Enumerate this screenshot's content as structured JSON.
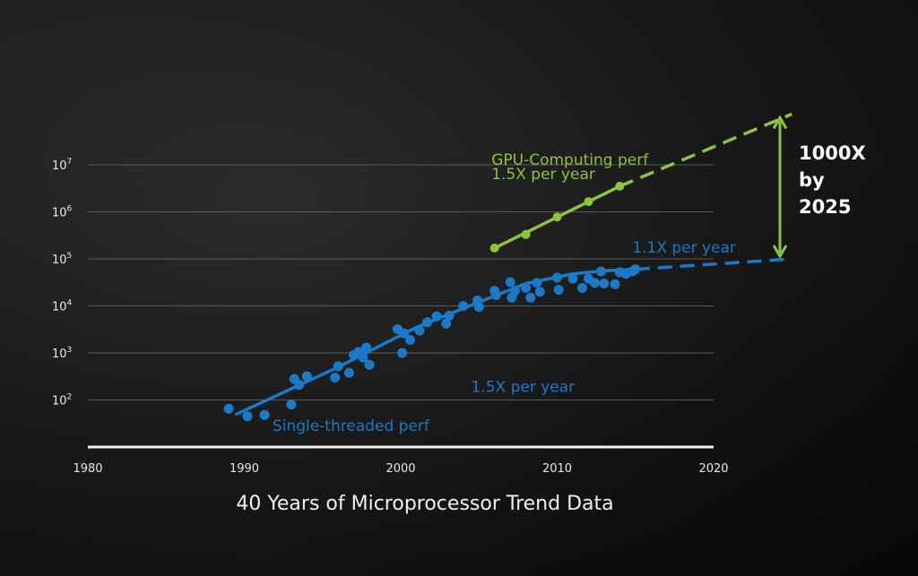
{
  "chart_data": {
    "type": "scatter",
    "y_scale": "log10",
    "xlim": [
      1980,
      2020
    ],
    "ylim": [
      10,
      10000000
    ],
    "x_ticks": [
      "1980",
      "1990",
      "2000",
      "2010",
      "2020"
    ],
    "y_ticks": [
      {
        "value": 100,
        "base": "10",
        "exp": "2"
      },
      {
        "value": 1000,
        "base": "10",
        "exp": "3"
      },
      {
        "value": 10000,
        "base": "10",
        "exp": "4"
      },
      {
        "value": 100000,
        "base": "10",
        "exp": "5"
      },
      {
        "value": 1000000,
        "base": "10",
        "exp": "6"
      },
      {
        "value": 10000000,
        "base": "10",
        "exp": "7"
      }
    ],
    "grid": true,
    "series": [
      {
        "name": "Single-threaded perf",
        "color": "#1a7ac9",
        "points": [
          [
            1989.0,
            65
          ],
          [
            1990.2,
            45
          ],
          [
            1991.3,
            48
          ],
          [
            1993.0,
            80
          ],
          [
            1993.2,
            280
          ],
          [
            1993.5,
            210
          ],
          [
            1994.0,
            320
          ],
          [
            1995.8,
            300
          ],
          [
            1996.0,
            520
          ],
          [
            1996.7,
            380
          ],
          [
            1997.0,
            900
          ],
          [
            1997.3,
            1050
          ],
          [
            1997.6,
            800
          ],
          [
            1997.8,
            1300
          ],
          [
            1998.0,
            560
          ],
          [
            1999.8,
            3200
          ],
          [
            2000.1,
            1000
          ],
          [
            2000.2,
            2600
          ],
          [
            2000.6,
            1900
          ],
          [
            2001.2,
            3000
          ],
          [
            2001.7,
            4500
          ],
          [
            2002.3,
            6000
          ],
          [
            2002.9,
            4200
          ],
          [
            2003.1,
            6200
          ],
          [
            2004.0,
            10000
          ],
          [
            2004.9,
            13000
          ],
          [
            2005.0,
            9500
          ],
          [
            2006.0,
            21000
          ],
          [
            2006.1,
            17000
          ],
          [
            2007.0,
            32000
          ],
          [
            2007.1,
            15000
          ],
          [
            2007.3,
            21000
          ],
          [
            2008.0,
            24000
          ],
          [
            2008.3,
            15000
          ],
          [
            2008.7,
            31000
          ],
          [
            2008.9,
            20000
          ],
          [
            2010.0,
            40000
          ],
          [
            2010.1,
            22000
          ],
          [
            2011.0,
            38000
          ],
          [
            2011.6,
            24000
          ],
          [
            2012.0,
            38000
          ],
          [
            2012.4,
            31000
          ],
          [
            2012.8,
            54000
          ],
          [
            2013.0,
            30000
          ],
          [
            2013.7,
            29000
          ],
          [
            2014.0,
            52000
          ],
          [
            2014.4,
            48000
          ],
          [
            2014.8,
            54000
          ],
          [
            2015.0,
            60000
          ]
        ],
        "trend": [
          [
            1989.5,
            50
          ],
          [
            1996,
            500
          ],
          [
            2001,
            3500
          ],
          [
            2005,
            12000
          ],
          [
            2008,
            30000
          ],
          [
            2011,
            48000
          ],
          [
            2013,
            56000
          ],
          [
            2015,
            60000
          ]
        ],
        "projection": [
          [
            2015,
            60000
          ],
          [
            2025,
            100000
          ]
        ],
        "growth_labels": [
          {
            "text": "1.5X per year",
            "x": 2004.5,
            "y": 150
          },
          {
            "text": "1.1X per year",
            "x": 2014.8,
            "y": 135000
          }
        ]
      },
      {
        "name": "GPU-Computing perf",
        "color": "#8cc43a",
        "points": [
          [
            2006.0,
            170000
          ],
          [
            2008.0,
            330000
          ],
          [
            2010.0,
            780000
          ],
          [
            2012.0,
            1650000
          ],
          [
            2014.0,
            3500000
          ]
        ],
        "trend": [
          [
            2006.0,
            170000
          ],
          [
            2014.0,
            3500000
          ]
        ],
        "projection": [
          [
            2014.0,
            3500000
          ],
          [
            2025,
            120000000
          ]
        ],
        "growth_labels": [
          {
            "text": "1.5X per year",
            "x": 2005.8,
            "y": 5000000
          }
        ]
      }
    ],
    "series_label_positions": [
      {
        "series": 0,
        "x": 1991.8,
        "y": 22
      },
      {
        "series": 1,
        "x": 2005.8,
        "y": 10000000
      }
    ],
    "annotations": [
      {
        "text": "1000X",
        "line": 1
      },
      {
        "text": "by",
        "line": 2
      },
      {
        "text": "2025",
        "line": 3
      }
    ],
    "callout_range": [
      100000,
      120000000
    ],
    "callout_color": "#8cc43a",
    "title": "40 Years of Microprocessor Trend Data"
  }
}
